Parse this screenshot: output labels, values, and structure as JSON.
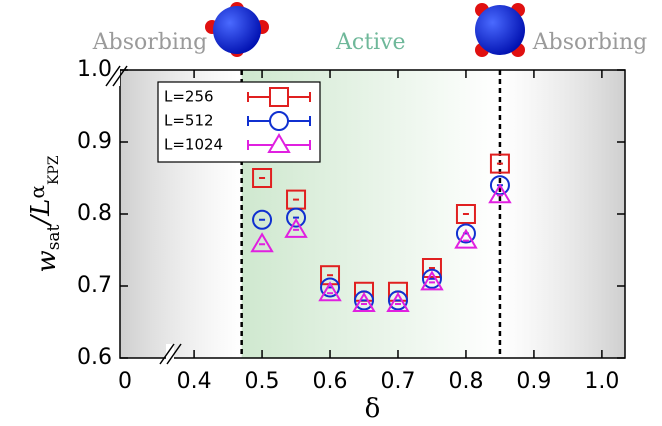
{
  "chart_data": {
    "type": "scatter",
    "x_label": "δ",
    "y_label": [
      "w",
      "sat",
      "/L",
      "α",
      "KPZ"
    ],
    "x_break_label": "0",
    "regions": [
      {
        "label": "Absorbing",
        "from": 0.291,
        "to": 0.47,
        "color": "#cfcfcf"
      },
      {
        "label": "Active",
        "from": 0.47,
        "to": 0.85,
        "color": "#cfe8cf"
      },
      {
        "label": "Absorbing",
        "from": 0.85,
        "to": 1.034,
        "color": "#cfcfcf"
      }
    ],
    "x": [
      0.5,
      0.55,
      0.6,
      0.65,
      0.7,
      0.75,
      0.8,
      0.85
    ],
    "series": [
      {
        "name": "L=256",
        "color": "#e02020",
        "marker": "square",
        "values": [
          0.85,
          0.82,
          0.715,
          0.692,
          0.692,
          0.725,
          0.8,
          0.87
        ]
      },
      {
        "name": "L=512",
        "color": "#1030d0",
        "marker": "circle",
        "values": [
          0.792,
          0.795,
          0.698,
          0.68,
          0.68,
          0.71,
          0.773,
          0.84
        ]
      },
      {
        "name": "L=1024",
        "color": "#e020e0",
        "marker": "triangle",
        "values": [
          0.758,
          0.778,
          0.69,
          0.675,
          0.675,
          0.705,
          0.763,
          0.826
        ]
      }
    ],
    "xlim": [
      0.291,
      1.034
    ],
    "ylim": [
      0.6,
      1.0
    ],
    "xticks": [
      0.4,
      0.5,
      0.6,
      0.7,
      0.8,
      0.9,
      {
        "value": 1.0,
        "label": "1.0"
      }
    ],
    "yticks": [
      0.6,
      0.7,
      0.8,
      0.9,
      {
        "value": 1.0,
        "label": "1.0"
      }
    ]
  }
}
